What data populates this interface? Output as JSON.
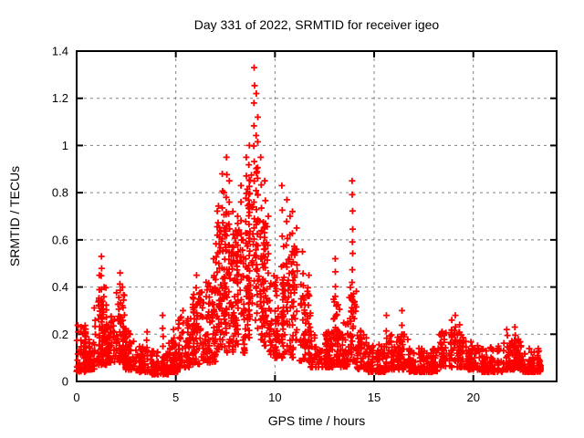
{
  "chart_data": {
    "type": "scatter",
    "title": "Day 331 of 2022, SRMTID for receiver igeo",
    "xlabel": "GPS time / hours",
    "ylabel": "SRMTID / TECUs",
    "xlim": [
      0,
      24.2
    ],
    "ylim": [
      0,
      1.4
    ],
    "x_ticks": [
      0,
      5,
      10,
      15,
      20
    ],
    "x_tick_labels": [
      "0",
      "5",
      "10",
      "15",
      "20"
    ],
    "y_ticks": [
      0,
      0.2,
      0.4,
      0.6,
      0.8,
      1.0,
      1.2,
      1.4
    ],
    "y_tick_labels": [
      "0",
      "0.2",
      "0.4",
      "0.6",
      "0.8",
      "1",
      "1.2",
      "1.4"
    ],
    "grid": true,
    "legend": "none",
    "marker": {
      "shape": "plus",
      "size": 7,
      "color": "#ff0000"
    },
    "colors": {
      "grid": "#808080",
      "border": "#000000",
      "background": "#ffffff"
    },
    "data_time_range_hours": [
      0,
      23.45
    ],
    "max_point": {
      "t": 8.95,
      "v": 1.33
    },
    "band_envelope_note": "segments: [t_start, t_end, value_min, value_max, point_count, bottom_bias_exponent]",
    "band": [
      [
        0.0,
        0.5,
        0.04,
        0.24,
        70,
        1.6
      ],
      [
        0.5,
        0.9,
        0.05,
        0.18,
        48,
        1.8
      ],
      [
        0.9,
        1.5,
        0.07,
        0.4,
        80,
        1.7
      ],
      [
        1.5,
        1.95,
        0.08,
        0.28,
        52,
        1.8
      ],
      [
        1.95,
        2.45,
        0.08,
        0.38,
        66,
        1.7
      ],
      [
        2.45,
        3.0,
        0.05,
        0.22,
        58,
        1.8
      ],
      [
        3.0,
        3.6,
        0.04,
        0.15,
        55,
        1.8
      ],
      [
        3.6,
        4.6,
        0.03,
        0.13,
        82,
        1.8
      ],
      [
        4.6,
        5.1,
        0.04,
        0.18,
        50,
        1.8
      ],
      [
        5.1,
        5.7,
        0.06,
        0.28,
        60,
        1.8
      ],
      [
        5.7,
        6.4,
        0.07,
        0.38,
        70,
        1.6
      ],
      [
        6.4,
        7.0,
        0.08,
        0.45,
        66,
        1.5
      ],
      [
        7.0,
        7.7,
        0.12,
        0.75,
        92,
        1.2
      ],
      [
        7.7,
        8.5,
        0.12,
        0.68,
        88,
        1.2
      ],
      [
        8.5,
        9.2,
        0.18,
        0.9,
        88,
        1.1
      ],
      [
        9.2,
        9.7,
        0.15,
        0.68,
        62,
        1.2
      ],
      [
        9.7,
        10.3,
        0.1,
        0.45,
        64,
        1.5
      ],
      [
        10.3,
        11.2,
        0.1,
        0.58,
        88,
        1.3
      ],
      [
        11.2,
        11.8,
        0.08,
        0.42,
        58,
        1.5
      ],
      [
        11.8,
        12.9,
        0.06,
        0.22,
        100,
        1.8
      ],
      [
        12.9,
        13.3,
        0.07,
        0.35,
        46,
        1.6
      ],
      [
        13.3,
        13.75,
        0.06,
        0.25,
        44,
        1.8
      ],
      [
        13.75,
        14.1,
        0.08,
        0.4,
        40,
        1.6
      ],
      [
        14.1,
        14.7,
        0.05,
        0.22,
        56,
        1.8
      ],
      [
        14.7,
        15.6,
        0.04,
        0.16,
        80,
        1.8
      ],
      [
        15.6,
        16.7,
        0.05,
        0.2,
        95,
        1.8
      ],
      [
        16.7,
        18.3,
        0.04,
        0.14,
        130,
        1.8
      ],
      [
        18.3,
        19.5,
        0.06,
        0.22,
        100,
        1.7
      ],
      [
        19.5,
        20.3,
        0.05,
        0.17,
        70,
        1.8
      ],
      [
        20.3,
        21.5,
        0.04,
        0.15,
        100,
        1.8
      ],
      [
        21.5,
        22.4,
        0.05,
        0.18,
        80,
        1.8
      ],
      [
        22.4,
        23.45,
        0.04,
        0.14,
        92,
        1.8
      ]
    ],
    "spikes_note": "vertical spike columns: [t_hours, top_value, point_count]",
    "spikes": [
      [
        1.25,
        0.53,
        9
      ],
      [
        1.15,
        0.45,
        6
      ],
      [
        2.2,
        0.46,
        8
      ],
      [
        2.32,
        0.4,
        5
      ],
      [
        3.55,
        0.21,
        5
      ],
      [
        4.35,
        0.28,
        5
      ],
      [
        4.9,
        0.22,
        4
      ],
      [
        5.35,
        0.3,
        5
      ],
      [
        5.9,
        0.35,
        6
      ],
      [
        6.05,
        0.45,
        6
      ],
      [
        6.55,
        0.42,
        5
      ],
      [
        6.9,
        0.52,
        6
      ],
      [
        7.1,
        0.62,
        6
      ],
      [
        7.35,
        0.88,
        10
      ],
      [
        7.45,
        0.8,
        7
      ],
      [
        7.55,
        0.95,
        9
      ],
      [
        7.68,
        0.85,
        7
      ],
      [
        7.9,
        0.72,
        6
      ],
      [
        8.1,
        0.7,
        6
      ],
      [
        8.3,
        0.83,
        8
      ],
      [
        8.55,
        0.95,
        8
      ],
      [
        8.7,
        1.0,
        8
      ],
      [
        8.95,
        1.33,
        12
      ],
      [
        9.05,
        1.22,
        6
      ],
      [
        9.12,
        1.12,
        8
      ],
      [
        9.3,
        0.95,
        7
      ],
      [
        9.5,
        0.85,
        7
      ],
      [
        9.65,
        0.7,
        5
      ],
      [
        10.35,
        0.83,
        6
      ],
      [
        10.6,
        0.77,
        7
      ],
      [
        10.75,
        0.7,
        6
      ],
      [
        10.9,
        0.72,
        7
      ],
      [
        11.1,
        0.65,
        6
      ],
      [
        11.4,
        0.55,
        5
      ],
      [
        11.7,
        0.45,
        4
      ],
      [
        13.05,
        0.52,
        7
      ],
      [
        13.9,
        0.85,
        10
      ],
      [
        15.6,
        0.28,
        4
      ],
      [
        16.4,
        0.3,
        5
      ],
      [
        18.9,
        0.26,
        4
      ],
      [
        19.1,
        0.28,
        5
      ],
      [
        19.3,
        0.24,
        4
      ],
      [
        21.7,
        0.22,
        4
      ],
      [
        22.1,
        0.23,
        4
      ]
    ]
  }
}
